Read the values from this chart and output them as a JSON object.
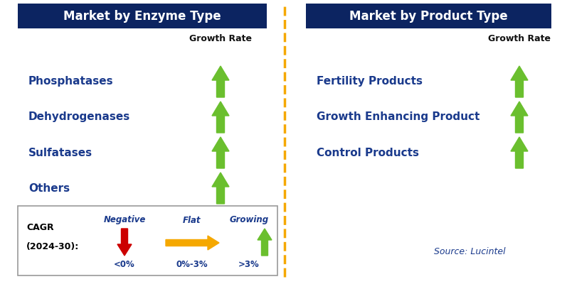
{
  "title_left": "Market by Enzyme Type",
  "title_right": "Market by Product Type",
  "title_bg": "#0c2461",
  "title_fg": "#ffffff",
  "left_items": [
    "Phosphatases",
    "Dehydrogenases",
    "Sulfatases",
    "Others"
  ],
  "right_items": [
    "Fertility Products",
    "Growth Enhancing Product",
    "Control Products"
  ],
  "item_color": "#1a3a8c",
  "growth_rate_label": "Growth Rate",
  "growth_rate_color": "#111111",
  "arrow_green": "#6abf2e",
  "arrow_red": "#cc0000",
  "arrow_yellow": "#f5a800",
  "legend_text_negative": "Negative",
  "legend_text_flat": "Flat",
  "legend_text_growing": "Growing",
  "legend_sub_negative": "<0%",
  "legend_sub_flat": "0%-3%",
  "legend_sub_growing": ">3%",
  "source_text": "Source: Lucintel",
  "source_color": "#1a3a8c",
  "dashed_line_color": "#f5a800",
  "background_color": "#ffffff",
  "border_color": "#999999"
}
